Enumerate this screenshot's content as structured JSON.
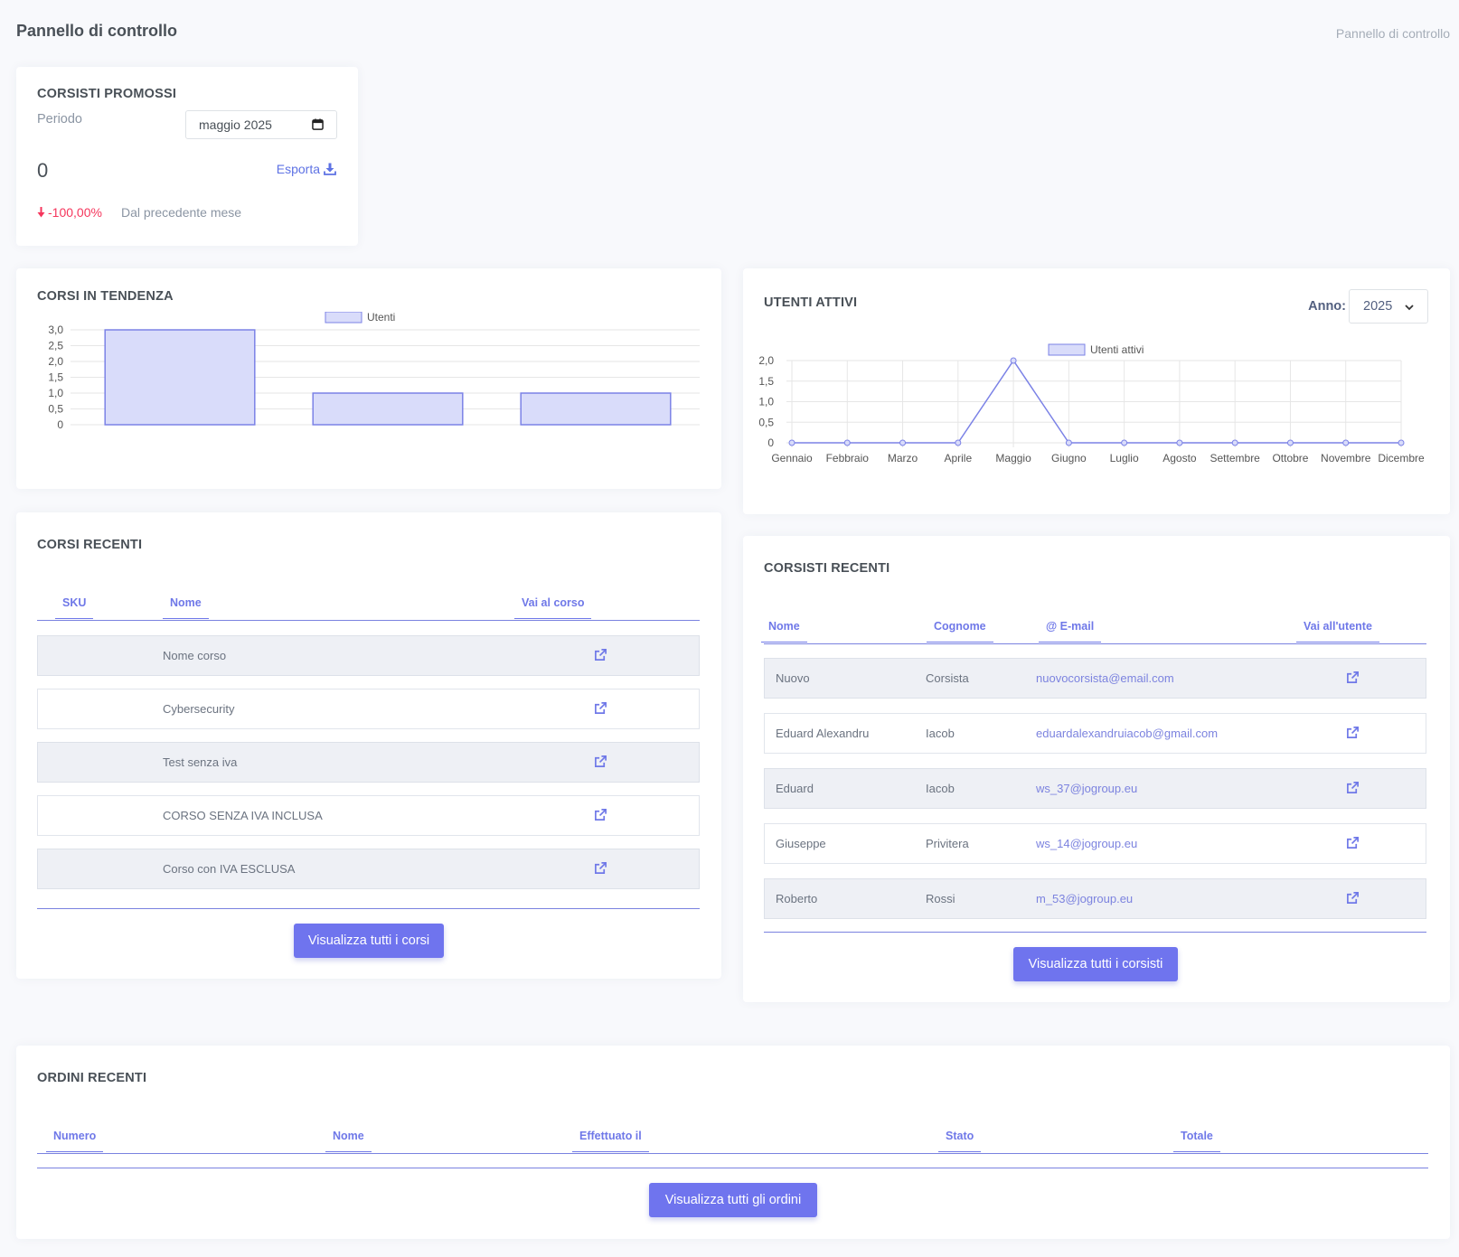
{
  "page": {
    "title": "Pannello di controllo",
    "breadcrumb": "Pannello di controllo"
  },
  "colors": {
    "accent": "#6f74ee",
    "negative": "#f5365c",
    "bar_fill": "#d9dcfa",
    "bar_stroke": "#7b82e6"
  },
  "promossi": {
    "title": "CORSISTI PROMOSSI",
    "period_label": "Periodo",
    "period_value": "maggio 2025",
    "count": "0",
    "export_label": "Esporta",
    "delta": "-100,00%",
    "delta_note": "Dal precedente mese"
  },
  "tendenza": {
    "title": "CORSI IN TENDENZA"
  },
  "attivi": {
    "title": "UTENTI ATTIVI",
    "year_label": "Anno:",
    "year_value": "2025"
  },
  "chart_data": [
    {
      "type": "bar",
      "legend": [
        "Utenti"
      ],
      "series": [
        {
          "name": "Utenti",
          "values": [
            3,
            1,
            1
          ]
        }
      ],
      "categories": [
        "",
        "",
        ""
      ],
      "ylim": [
        0,
        3
      ],
      "yticks": [
        "0",
        "0,5",
        "1,0",
        "1,5",
        "2,0",
        "2,5",
        "3,0"
      ],
      "grid": true,
      "legend_position": "top"
    },
    {
      "type": "line",
      "legend": [
        "Utenti attivi"
      ],
      "categories": [
        "Gennaio",
        "Febbraio",
        "Marzo",
        "Aprile",
        "Maggio",
        "Giugno",
        "Luglio",
        "Agosto",
        "Settembre",
        "Ottobre",
        "Novembre",
        "Dicembre"
      ],
      "series": [
        {
          "name": "Utenti attivi",
          "values": [
            0,
            0,
            0,
            0,
            2,
            0,
            0,
            0,
            0,
            0,
            0,
            0
          ]
        }
      ],
      "ylim": [
        0,
        2
      ],
      "yticks": [
        "0",
        "0,5",
        "1,0",
        "1,5",
        "2,0"
      ],
      "grid": true,
      "legend_position": "top"
    }
  ],
  "corsi": {
    "title": "CORSI RECENTI",
    "headers": [
      "SKU",
      "Nome",
      "Vai al corso"
    ],
    "rows": [
      {
        "sku": "",
        "nome": "Nome corso"
      },
      {
        "sku": "",
        "nome": "Cybersecurity"
      },
      {
        "sku": "",
        "nome": "Test senza iva"
      },
      {
        "sku": "",
        "nome": "CORSO SENZA IVA INCLUSA"
      },
      {
        "sku": "",
        "nome": "Corso con IVA ESCLUSA"
      }
    ],
    "button": "Visualizza tutti i corsi"
  },
  "corsisti": {
    "title": "CORSISTI RECENTI",
    "headers": [
      "Nome",
      "Cognome",
      "E-mail",
      "Vai all'utente"
    ],
    "rows": [
      {
        "nome": "Nuovo",
        "cognome": "Corsista",
        "email": "nuovocorsista@email.com"
      },
      {
        "nome": "Eduard Alexandru",
        "cognome": "Iacob",
        "email": "eduardalexandruiacob@gmail.com"
      },
      {
        "nome": "Eduard",
        "cognome": "Iacob",
        "email": "ws_37@jogroup.eu"
      },
      {
        "nome": "Giuseppe",
        "cognome": "Privitera",
        "email": "ws_14@jogroup.eu"
      },
      {
        "nome": "Roberto",
        "cognome": "Rossi",
        "email": "m_53@jogroup.eu"
      }
    ],
    "button": "Visualizza tutti i corsisti"
  },
  "ordini": {
    "title": "ORDINI RECENTI",
    "headers": [
      "Numero",
      "Nome",
      "Effettuato il",
      "Stato",
      "Totale"
    ],
    "button": "Visualizza tutti gli ordini"
  }
}
